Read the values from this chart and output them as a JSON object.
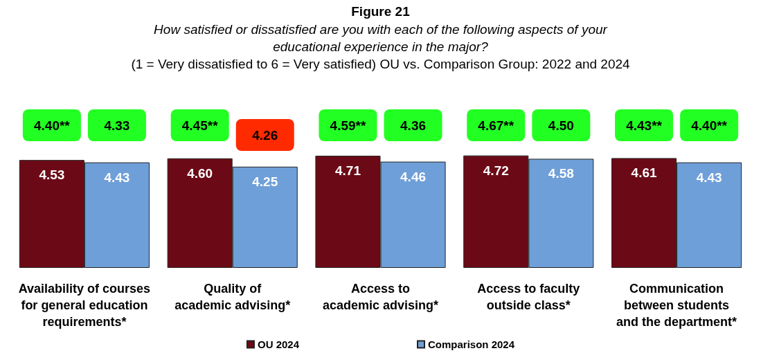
{
  "chart_data": {
    "type": "bar",
    "title": "Figure 21",
    "subtitle": "How satisfied or dissatisfied are you with each of the following aspects of your\neducational experience in the major?\n(1 = Very dissatisfied to 6 = Very satisfied) OU vs. Comparison Group: 2022 and 2024",
    "categories": [
      "Availability of courses\nfor general education\nrequirements*",
      "Quality of\nacademic advising*",
      "Access to\nacademic advising*",
      "Access to faculty\noutside class*",
      "Communication\nbetween students\nand the department*"
    ],
    "series": [
      {
        "name": "OU 2024",
        "color": "#6b0a16",
        "values": [
          4.53,
          4.6,
          4.71,
          4.72,
          4.61
        ],
        "value_labels": [
          "4.53",
          "4.60",
          "4.71",
          "4.72",
          "4.61"
        ]
      },
      {
        "name": "Comparison 2024",
        "color": "#6f9fd8",
        "values": [
          4.43,
          4.25,
          4.46,
          4.58,
          4.43
        ],
        "value_labels": [
          "4.43",
          "4.25",
          "4.46",
          "4.58",
          "4.43"
        ]
      }
    ],
    "legend": "bottom",
    "annotations": [
      "4.40**",
      "4.33",
      "4.45**",
      "4.26",
      "4.59**",
      "4.36",
      "4.67**",
      "4.50",
      "4.43**",
      "4.40**"
    ]
  }
}
